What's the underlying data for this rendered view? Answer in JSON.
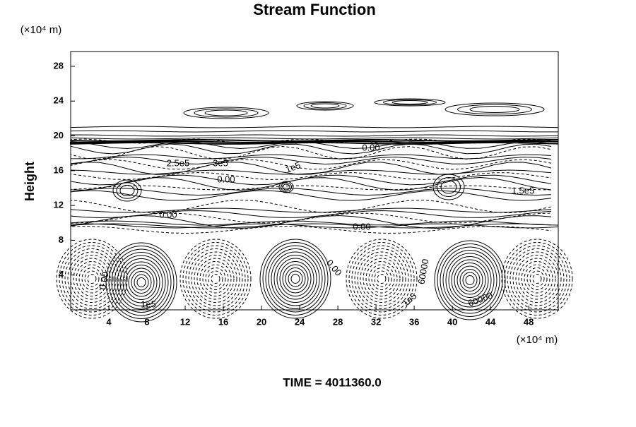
{
  "chart_data": {
    "type": "contour",
    "title": "Stream Function",
    "y_unit": "(×10⁴ m)",
    "x_unit": "(×10⁴ m)",
    "y_label": "Height",
    "footer": "TIME = 4011360.0",
    "xlim": [
      0,
      51.1
    ],
    "ylim": [
      0,
      29.7
    ],
    "xticks": [
      4,
      8,
      12,
      16,
      20,
      24,
      28,
      32,
      36,
      40,
      44,
      48
    ],
    "yticks": [
      4,
      8,
      12,
      16,
      20,
      24,
      28
    ],
    "contour_labels": [
      "0.00",
      "1e5",
      "0.00",
      "0.00",
      "0.00",
      "1e5",
      "60000",
      "3e5",
      "2.5e5",
      "1e5",
      "0.00",
      "60000",
      "1.5e5",
      "0.00"
    ],
    "color": "#000000"
  }
}
